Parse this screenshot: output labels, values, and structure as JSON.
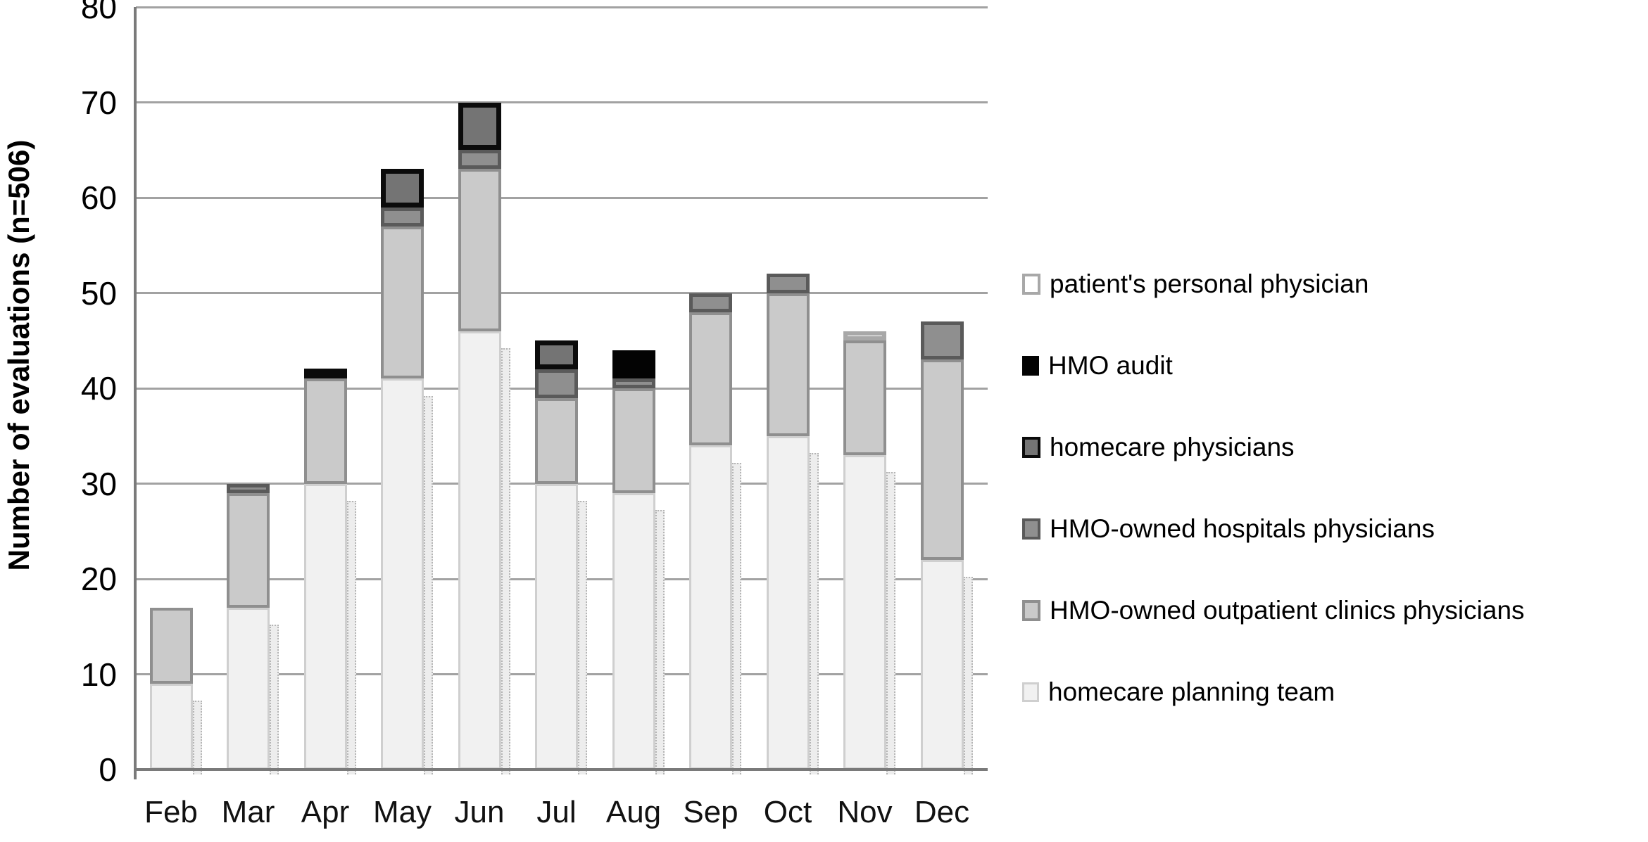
{
  "chart_data": {
    "type": "bar",
    "stacked": true,
    "title": "",
    "xlabel": "",
    "ylabel": "Number of evaluations (n=506)",
    "n_total": 506,
    "ylim": [
      0,
      80
    ],
    "yticks": [
      0,
      10,
      20,
      30,
      40,
      50,
      60,
      70,
      80
    ],
    "grid": "horizontal-only",
    "legend_position": "right-of-plot",
    "legend_order_top_to_bottom": [
      "patient's personal physician",
      "HMO audit",
      "homecare physicians",
      "HMO-owned hospitals physicians",
      "HMO-owned outpatient clinics physicians",
      "homecare planning team"
    ],
    "categories": [
      "Feb",
      "Mar",
      "Apr",
      "May",
      "Jun",
      "Jul",
      "Aug",
      "Sep",
      "Oct",
      "Nov",
      "Dec"
    ],
    "series": [
      {
        "name": "homecare planning team",
        "fill": "#f1f1f1",
        "border": "#cfcfcf",
        "border_px": 3,
        "values": [
          9,
          17,
          30,
          41,
          46,
          30,
          29,
          34,
          35,
          33,
          22
        ]
      },
      {
        "name": "HMO-owned outpatient clinics physicians",
        "fill": "#cacaca",
        "border": "#8f8f8f",
        "border_px": 4,
        "values": [
          8,
          12,
          11,
          16,
          17,
          9,
          11,
          14,
          15,
          12,
          21
        ]
      },
      {
        "name": "HMO-owned hospitals physicians",
        "fill": "#8f8f8f",
        "border": "#5a5a5a",
        "border_px": 5,
        "values": [
          0,
          1,
          0,
          2,
          2,
          3,
          1,
          2,
          2,
          0,
          4
        ]
      },
      {
        "name": "homecare physicians",
        "fill": "#747474",
        "border": "#0b0b0b",
        "border_px": 7,
        "values": [
          0,
          0,
          1,
          4,
          5,
          3,
          0,
          0,
          0,
          0,
          0
        ]
      },
      {
        "name": "HMO audit",
        "fill": "#030303",
        "border": "#030303",
        "border_px": 3,
        "values": [
          0,
          0,
          0,
          0,
          0,
          0,
          3,
          0,
          0,
          0,
          0
        ]
      },
      {
        "name": "patient's personal physician",
        "fill": "#ffffff",
        "border": "#a8a8a8",
        "border_px": 6,
        "values": [
          0,
          0,
          0,
          0,
          0,
          0,
          0,
          0,
          0,
          1,
          0
        ]
      }
    ],
    "totals": [
      17,
      30,
      42,
      63,
      70,
      45,
      44,
      50,
      52,
      46,
      47
    ],
    "bar_shadow_heights": [
      7.2,
      15.2,
      28.2,
      39.2,
      44.2,
      28.2,
      27.2,
      32.2,
      33.2,
      31.2,
      20.2
    ]
  },
  "colors": {
    "background": "#ffffff",
    "gridline": "#a2a2a2",
    "axis_line": "#7a7a7a",
    "tick_text": "#000000",
    "shadow_fill": "#ededed",
    "shadow_border": "#b5b5b5"
  }
}
